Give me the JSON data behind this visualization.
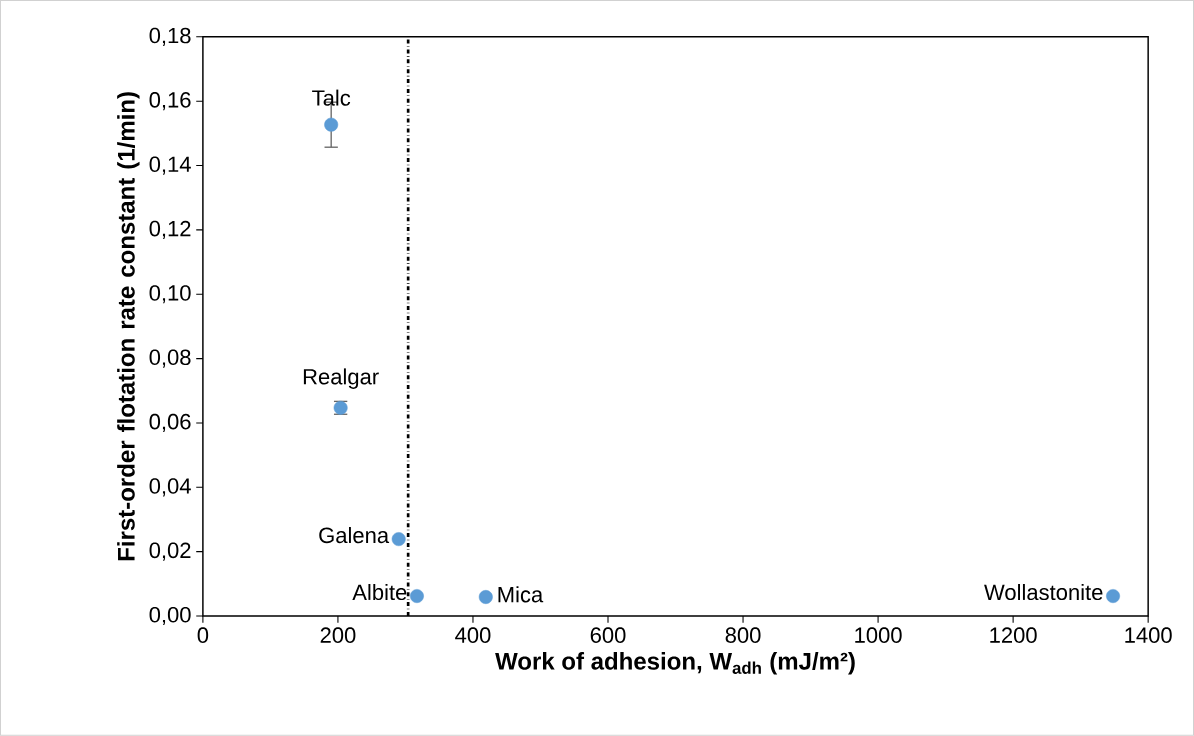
{
  "chart_data": {
    "type": "scatter",
    "xlabel": "Work of adhesion, W$_{adh}$ (mJ/m²)",
    "ylabel": "First-order flotation rate constant (1/min)",
    "series": [
      {
        "color": "#5b9bd5",
        "x": [
          190,
          204,
          290,
          317,
          419,
          1348
        ],
        "values": [
          0.1527,
          0.0647,
          0.0239,
          0.0062,
          0.0059,
          0.0062
        ],
        "errors": [
          0.007,
          0.002,
          null,
          null,
          null,
          null
        ]
      }
    ],
    "annotations": [
      {
        "text": "Talc",
        "x": 190,
        "y": 0.1527
      },
      {
        "text": "Realgar",
        "x": 204,
        "y": 0.0647
      },
      {
        "text": "Galena",
        "x": 290,
        "y": 0.0239
      },
      {
        "text": "Albite",
        "x": 317,
        "y": 0.0062
      },
      {
        "text": "Mica",
        "x": 419,
        "y": 0.0059
      },
      {
        "text": "Wollastonite",
        "x": 1348,
        "y": 0.0062
      }
    ],
    "ref_lines": [
      {
        "axis": "x",
        "value": 304,
        "color": "#000000",
        "line_style": "dashdot"
      }
    ],
    "xlim": [
      0,
      1400
    ],
    "xticks": [
      0,
      200,
      400,
      600,
      800,
      1000,
      1200,
      1400
    ],
    "ylim": [
      0,
      0.18
    ],
    "yticks": [
      {
        "value": 0,
        "label": "0,00"
      },
      {
        "value": 0.02,
        "label": "0,02"
      },
      {
        "value": 0.04,
        "label": "0,04"
      },
      {
        "value": 0.06,
        "label": "0,06"
      },
      {
        "value": 0.08,
        "label": "0,08"
      },
      {
        "value": 0.1,
        "label": "0,10"
      },
      {
        "value": 0.12,
        "label": "0,12"
      },
      {
        "value": 0.14,
        "label": "0,14"
      },
      {
        "value": 0.16,
        "label": "0,16"
      },
      {
        "value": 0.18,
        "label": "0,18"
      }
    ],
    "grid": false,
    "marker": "circle"
  }
}
